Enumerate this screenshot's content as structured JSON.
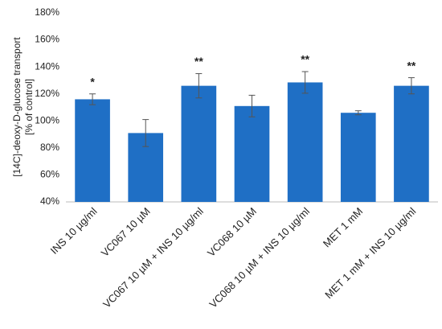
{
  "chart_data": {
    "type": "bar",
    "ylabel": [
      "[14C]-deoxy-D-glucose transport",
      "[% of control]"
    ],
    "categories": [
      "INS 10 µg/ml",
      "VC067 10 µM",
      "VC067 10 µM + INS 10 µg/ml",
      "VC068 10 µM",
      "VC068 10 µM + INS 10 µg/ml",
      "MET 1 mM",
      "MET 1 mM + INS 10 µg/ml"
    ],
    "values": [
      116,
      91,
      126,
      111,
      128.5,
      106,
      126
    ],
    "errors": [
      4,
      10,
      9,
      8,
      8,
      1.5,
      6
    ],
    "annotations": [
      "*",
      null,
      "**",
      null,
      "**",
      null,
      "**"
    ],
    "color": "#1f6fc5",
    "ylim": [
      40,
      180
    ],
    "yticks": [
      {
        "value": 40,
        "label": "40%"
      },
      {
        "value": 60,
        "label": "60%"
      },
      {
        "value": 80,
        "label": "80%"
      },
      {
        "value": 100,
        "label": "100%"
      },
      {
        "value": 120,
        "label": "120%"
      },
      {
        "value": 140,
        "label": "140%"
      },
      {
        "value": 160,
        "label": "160%"
      },
      {
        "value": 180,
        "label": "180%"
      }
    ]
  }
}
